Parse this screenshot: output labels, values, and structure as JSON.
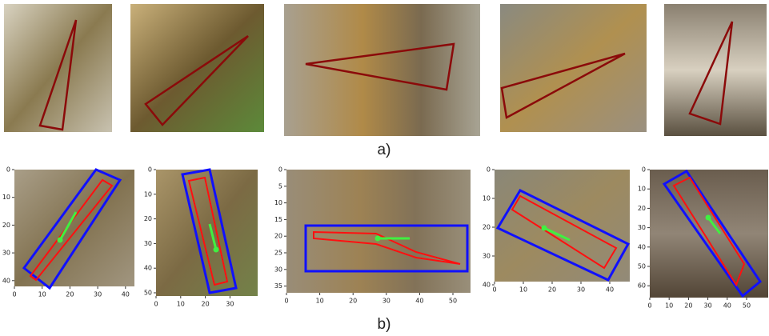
{
  "figure": {
    "labels": {
      "a": "a)",
      "b": "b)"
    },
    "panels_b": [
      {
        "xticks": [
          0,
          10,
          20,
          30,
          40
        ],
        "yticks": [
          0,
          10,
          20,
          30,
          40
        ]
      },
      {
        "xticks": [
          0,
          10,
          20,
          30
        ],
        "yticks": [
          0,
          10,
          20,
          30,
          40,
          50
        ]
      },
      {
        "xticks": [
          0,
          10,
          20,
          30,
          40,
          50
        ],
        "yticks": [
          0,
          5,
          10,
          15,
          20,
          25,
          30,
          35
        ]
      },
      {
        "xticks": [
          0,
          10,
          20,
          30,
          40
        ],
        "yticks": [
          0,
          10,
          20,
          30,
          40
        ]
      },
      {
        "xticks": [
          0,
          10,
          20,
          30,
          40,
          50
        ],
        "yticks": [
          0,
          10,
          20,
          30,
          40,
          50,
          60
        ]
      }
    ]
  }
}
